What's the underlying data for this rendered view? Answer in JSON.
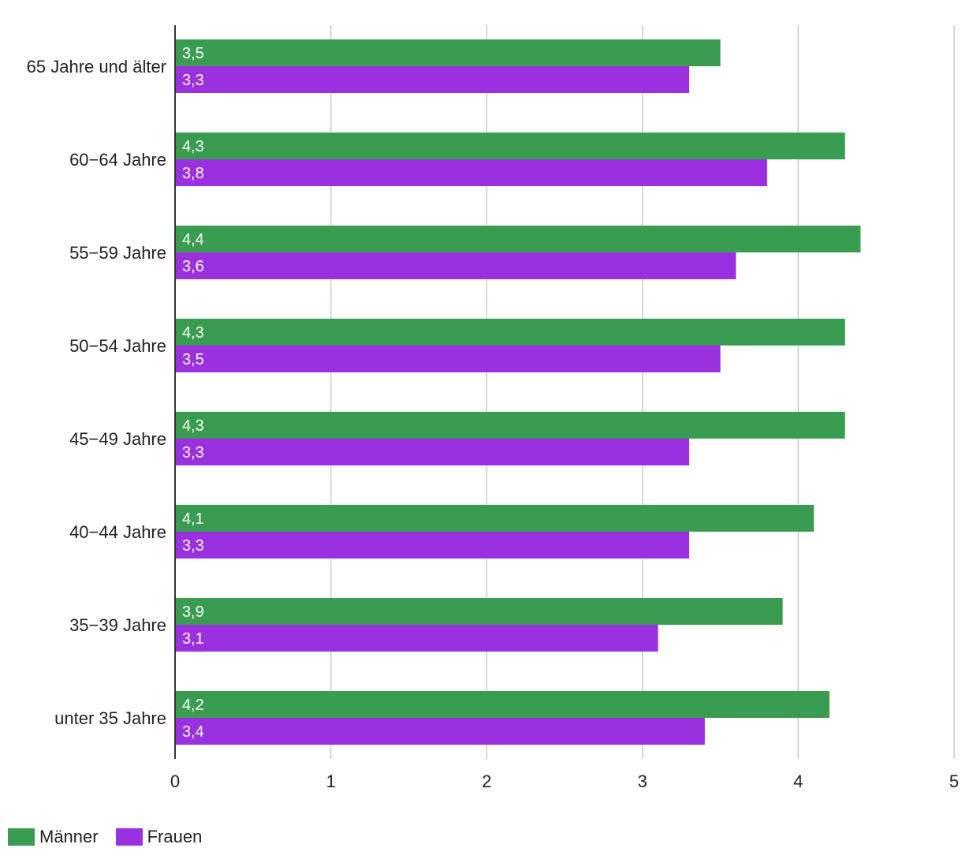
{
  "chart_data": {
    "type": "bar",
    "orientation": "horizontal",
    "title": "",
    "xlabel": "",
    "ylabel": "",
    "xlim": [
      0,
      5
    ],
    "ticks": [
      0,
      1,
      2,
      3,
      4,
      5
    ],
    "tick_labels": [
      "0",
      "1",
      "2",
      "3",
      "4",
      "5"
    ],
    "grid": true,
    "legend_position": "bottom-left",
    "categories": [
      "65 Jahre und älter",
      "60−64 Jahre",
      "55−59 Jahre",
      "50−54 Jahre",
      "45−49 Jahre",
      "40−44 Jahre",
      "35−39 Jahre",
      "unter 35 Jahre"
    ],
    "series": [
      {
        "name": "Männer",
        "color": "#3a9c50",
        "values": [
          3.5,
          4.3,
          4.4,
          4.3,
          4.3,
          4.1,
          3.9,
          4.2
        ],
        "labels": [
          "3,5",
          "4,3",
          "4,4",
          "4,3",
          "4,3",
          "4,1",
          "3,9",
          "4,2"
        ]
      },
      {
        "name": "Frauen",
        "color": "#9b30e0",
        "values": [
          3.3,
          3.8,
          3.6,
          3.5,
          3.3,
          3.3,
          3.1,
          3.4
        ],
        "labels": [
          "3,3",
          "3,8",
          "3,6",
          "3,5",
          "3,3",
          "3,3",
          "3,1",
          "3,4"
        ]
      }
    ]
  },
  "legend": {
    "items": [
      {
        "label": "Männer",
        "color": "#3a9c50"
      },
      {
        "label": "Frauen",
        "color": "#9b30e0"
      }
    ]
  }
}
